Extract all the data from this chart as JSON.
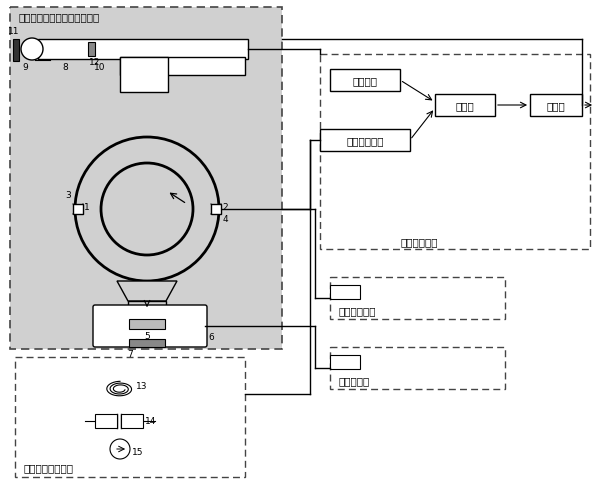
{
  "labels": {
    "title": "压力相移辅助的超流体干涉仪",
    "set_amplitude": "设定幅值",
    "film_amplitude": "薄膜位移幅值",
    "comparator": "比较器",
    "processor": "处理器",
    "amplitude_lock": "幅值锁定系统",
    "temp_control": "温度控制系统",
    "thermal_drive": "热驱动系统",
    "film_detect": "薄膜位移检测系统"
  }
}
